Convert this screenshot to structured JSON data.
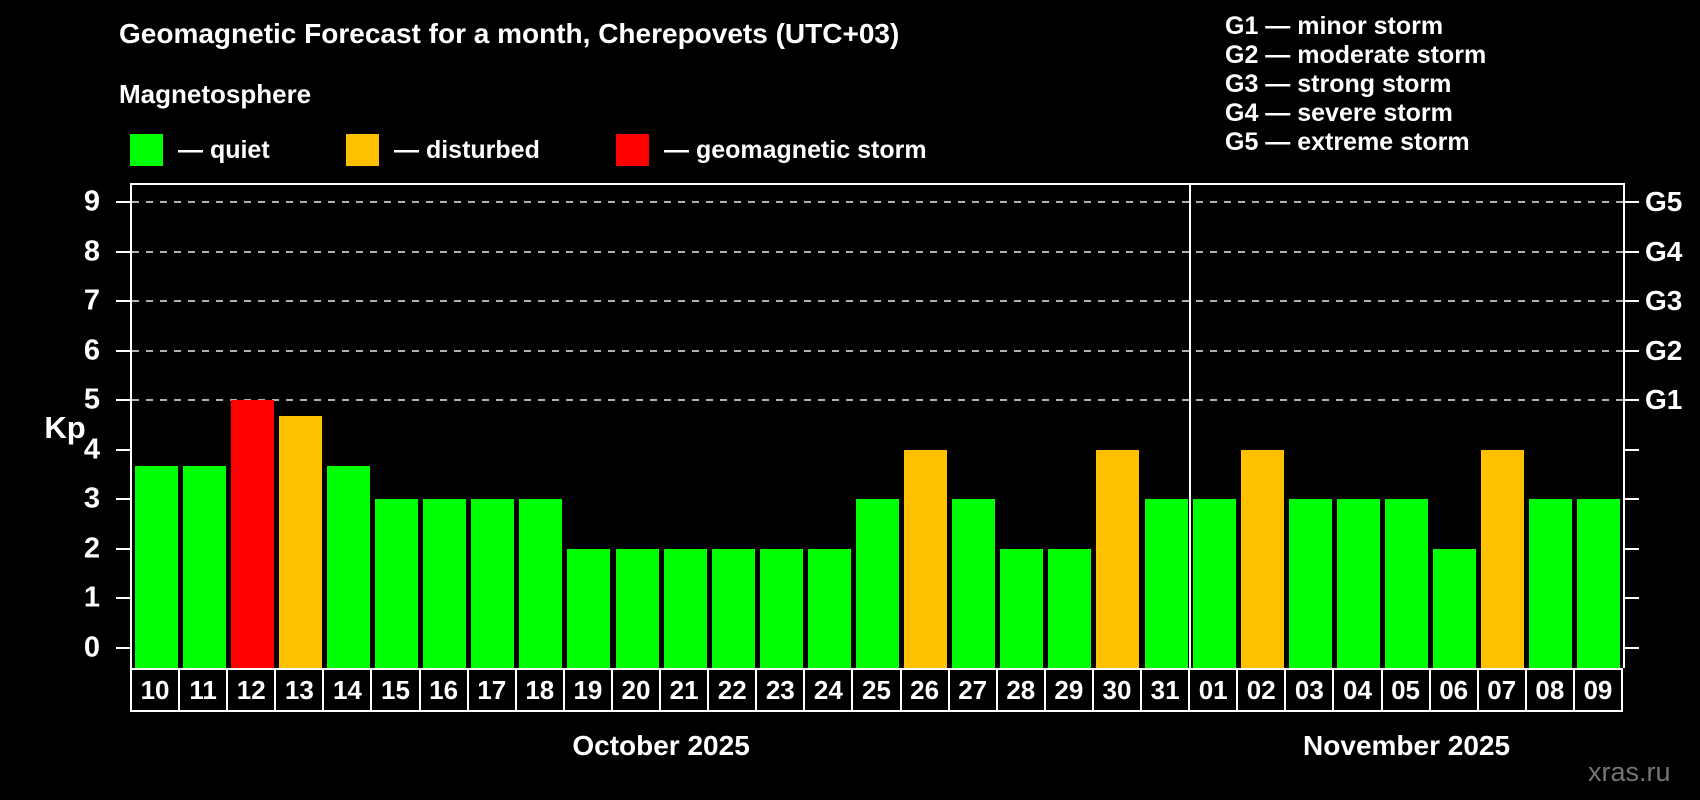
{
  "title": "Geomagnetic Forecast for a month, Cherepovets (UTC+03)",
  "subtitle": "Magnetosphere",
  "legend": {
    "quiet": "— quiet",
    "disturbed": "— disturbed",
    "storm": "— geomagnetic storm"
  },
  "g_scale_legend": [
    "G1 — minor storm",
    "G2 — moderate storm",
    "G3 — strong storm",
    "G4 — severe storm",
    "G5 — extreme storm"
  ],
  "watermark": "xras.ru",
  "colors": {
    "background": "#000000",
    "quiet": "#00ff00",
    "disturbed": "#ffc000",
    "storm": "#ff0000",
    "grid": "#b0b0b0",
    "axis": "#ffffff",
    "watermark": "#757575"
  },
  "chart_data": {
    "type": "bar",
    "title": "Geomagnetic Forecast for a month, Cherepovets (UTC+03)",
    "xlabel": "",
    "ylabel": "Kp",
    "ylim": [
      0,
      9
    ],
    "y_ticks": [
      0,
      1,
      2,
      3,
      4,
      5,
      6,
      7,
      8,
      9
    ],
    "grid_levels": [
      5,
      6,
      7,
      8,
      9
    ],
    "grid_on": true,
    "legend_position": "top",
    "g_axis": [
      {
        "label": "G1",
        "kp": 5
      },
      {
        "label": "G2",
        "kp": 6
      },
      {
        "label": "G3",
        "kp": 7
      },
      {
        "label": "G4",
        "kp": 8
      },
      {
        "label": "G5",
        "kp": 9
      }
    ],
    "months": [
      {
        "label": "October 2025",
        "days": [
          {
            "day": "10",
            "kp": 3.67,
            "status": "quiet"
          },
          {
            "day": "11",
            "kp": 3.67,
            "status": "quiet"
          },
          {
            "day": "12",
            "kp": 5.0,
            "status": "storm"
          },
          {
            "day": "13",
            "kp": 4.67,
            "status": "disturbed"
          },
          {
            "day": "14",
            "kp": 3.67,
            "status": "quiet"
          },
          {
            "day": "15",
            "kp": 3.0,
            "status": "quiet"
          },
          {
            "day": "16",
            "kp": 3.0,
            "status": "quiet"
          },
          {
            "day": "17",
            "kp": 3.0,
            "status": "quiet"
          },
          {
            "day": "18",
            "kp": 3.0,
            "status": "quiet"
          },
          {
            "day": "19",
            "kp": 2.0,
            "status": "quiet"
          },
          {
            "day": "20",
            "kp": 2.0,
            "status": "quiet"
          },
          {
            "day": "21",
            "kp": 2.0,
            "status": "quiet"
          },
          {
            "day": "22",
            "kp": 2.0,
            "status": "quiet"
          },
          {
            "day": "23",
            "kp": 2.0,
            "status": "quiet"
          },
          {
            "day": "24",
            "kp": 2.0,
            "status": "quiet"
          },
          {
            "day": "25",
            "kp": 3.0,
            "status": "quiet"
          },
          {
            "day": "26",
            "kp": 4.0,
            "status": "disturbed"
          },
          {
            "day": "27",
            "kp": 3.0,
            "status": "quiet"
          },
          {
            "day": "28",
            "kp": 2.0,
            "status": "quiet"
          },
          {
            "day": "29",
            "kp": 2.0,
            "status": "quiet"
          },
          {
            "day": "30",
            "kp": 4.0,
            "status": "disturbed"
          },
          {
            "day": "31",
            "kp": 3.0,
            "status": "quiet"
          }
        ]
      },
      {
        "label": "November 2025",
        "days": [
          {
            "day": "01",
            "kp": 3.0,
            "status": "quiet"
          },
          {
            "day": "02",
            "kp": 4.0,
            "status": "disturbed"
          },
          {
            "day": "03",
            "kp": 3.0,
            "status": "quiet"
          },
          {
            "day": "04",
            "kp": 3.0,
            "status": "quiet"
          },
          {
            "day": "05",
            "kp": 3.0,
            "status": "quiet"
          },
          {
            "day": "06",
            "kp": 2.0,
            "status": "quiet"
          },
          {
            "day": "07",
            "kp": 4.0,
            "status": "disturbed"
          },
          {
            "day": "08",
            "kp": 3.0,
            "status": "quiet"
          },
          {
            "day": "09",
            "kp": 3.0,
            "status": "quiet"
          }
        ]
      }
    ]
  }
}
